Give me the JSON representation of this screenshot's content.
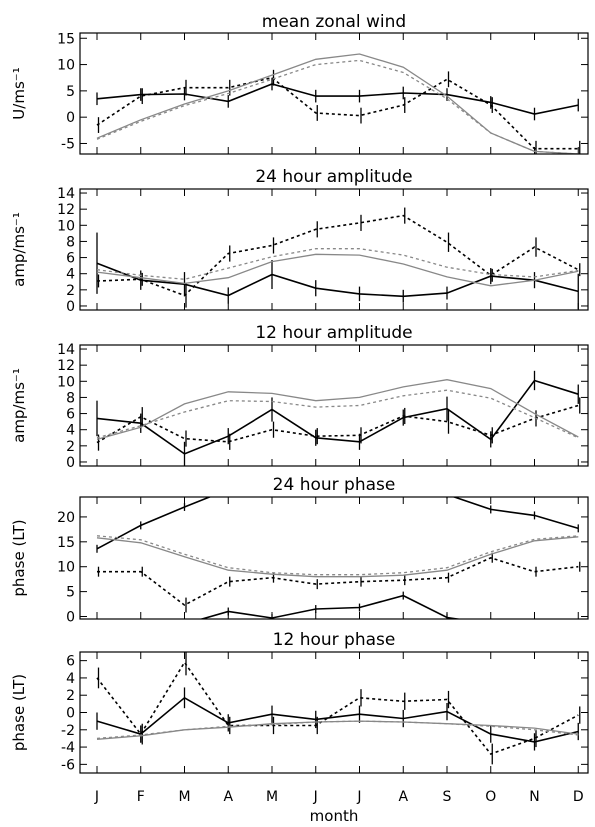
{
  "chart_data": {
    "type": "line",
    "months": [
      "J",
      "F",
      "M",
      "A",
      "M",
      "J",
      "J",
      "A",
      "S",
      "O",
      "N",
      "D"
    ],
    "xlabel": "month",
    "panels": [
      {
        "title": "mean zonal wind",
        "ylabel": "U/ms⁻¹",
        "ylim": [
          -7,
          16
        ],
        "yticks": [
          -5,
          0,
          5,
          10,
          15
        ],
        "series": [
          {
            "style": "solid-black",
            "values": [
              3.5,
              4.3,
              4.4,
              3.0,
              6.3,
              4.0,
              4.0,
              4.6,
              4.3,
              2.8,
              0.6,
              2.3
            ],
            "errors": [
              1.2,
              1.2,
              1.2,
              1.2,
              1.2,
              1.2,
              1.2,
              1.2,
              1.2,
              1.2,
              1.2,
              1.2
            ]
          },
          {
            "style": "dotted-black",
            "values": [
              -1.5,
              4.0,
              5.6,
              5.6,
              7.5,
              0.8,
              0.3,
              2.3,
              7.2,
              2.3,
              -6.0,
              -6.0
            ],
            "errors": [
              1.5,
              1.5,
              1.5,
              1.5,
              1.5,
              1.5,
              1.5,
              1.5,
              1.5,
              1.5,
              1.5,
              1.5
            ]
          },
          {
            "style": "solid-gray",
            "values": [
              -4.0,
              -0.5,
              2.5,
              5.0,
              8.0,
              11.0,
              12.0,
              9.5,
              4.0,
              -3.0,
              -6.5,
              -7.0
            ]
          },
          {
            "style": "dotted-gray",
            "values": [
              -4.2,
              -0.8,
              2.2,
              4.5,
              7.2,
              10.0,
              10.8,
              8.5,
              3.5,
              -3.0,
              -6.5,
              -7.0
            ]
          }
        ]
      },
      {
        "title": "24 hour amplitude",
        "ylabel": "amp/ms⁻¹",
        "ylim": [
          -0.5,
          14.5
        ],
        "yticks": [
          0,
          2,
          4,
          6,
          8,
          10,
          12,
          14
        ],
        "series": [
          {
            "style": "solid-black",
            "values": [
              5.3,
              3.2,
              2.7,
              1.3,
              3.9,
              2.2,
              1.5,
              1.2,
              1.6,
              3.7,
              3.2,
              1.8
            ],
            "errors": [
              3.8,
              1.2,
              1.5,
              1.0,
              1.8,
              1.0,
              0.9,
              0.8,
              0.8,
              1.0,
              1.0,
              2.2
            ]
          },
          {
            "style": "dotted-black",
            "values": [
              3.1,
              3.3,
              1.3,
              6.5,
              7.5,
              9.5,
              10.3,
              11.2,
              7.9,
              3.8,
              7.3,
              4.5
            ],
            "errors": [
              0.8,
              0.8,
              1.5,
              1.0,
              1.0,
              1.0,
              1.0,
              1.0,
              1.2,
              0.8,
              1.2,
              0.8
            ]
          },
          {
            "style": "solid-gray",
            "values": [
              4.2,
              3.5,
              2.8,
              3.5,
              5.5,
              6.4,
              6.3,
              5.2,
              3.6,
              2.5,
              3.2,
              4.3
            ]
          },
          {
            "style": "dotted-gray",
            "values": [
              4.5,
              3.8,
              3.3,
              4.7,
              6.1,
              7.1,
              7.1,
              6.3,
              4.8,
              3.9,
              3.6,
              4.4
            ]
          }
        ]
      },
      {
        "title": "12 hour amplitude",
        "ylabel": "amp/ms⁻¹",
        "ylim": [
          -0.5,
          14.5
        ],
        "yticks": [
          0,
          2,
          4,
          6,
          8,
          10,
          12,
          14
        ],
        "series": [
          {
            "style": "solid-black",
            "values": [
              5.4,
              4.8,
              1.0,
              3.2,
              6.5,
              3.0,
              2.5,
              5.5,
              6.6,
              2.8,
              10.1,
              8.4
            ],
            "errors": [
              2.2,
              1.2,
              1.5,
              1.0,
              1.5,
              1.0,
              1.0,
              1.0,
              1.5,
              1.0,
              1.2,
              1.2
            ]
          },
          {
            "style": "dotted-black",
            "values": [
              2.4,
              5.6,
              2.9,
              2.5,
              4.0,
              3.2,
              3.3,
              5.7,
              5.0,
              3.3,
              5.4,
              7.0
            ],
            "errors": [
              1.0,
              1.2,
              1.0,
              1.0,
              1.0,
              1.0,
              1.0,
              1.0,
              1.5,
              1.0,
              1.0,
              1.0
            ]
          },
          {
            "style": "solid-gray",
            "values": [
              2.8,
              4.3,
              7.2,
              8.7,
              8.5,
              7.6,
              8.0,
              9.3,
              10.2,
              9.1,
              6.0,
              3.1
            ]
          },
          {
            "style": "dotted-gray",
            "values": [
              3.0,
              4.5,
              6.2,
              7.6,
              7.5,
              6.8,
              7.0,
              8.2,
              8.9,
              7.9,
              5.5,
              3.0
            ]
          }
        ]
      },
      {
        "title": "24 hour phase",
        "ylabel": "phase (LT)",
        "ylim": [
          -0.5,
          24
        ],
        "yticks": [
          0,
          5,
          10,
          15,
          20
        ],
        "series": [
          {
            "style": "solid-black",
            "values": [
              13.6,
              18.3,
              22.0,
              25.5,
              null,
              null,
              null,
              null,
              24.5,
              21.5,
              20.3,
              17.7
            ],
            "errors": [
              0.8,
              0.8,
              0.8,
              0.8,
              0,
              0,
              0,
              0,
              0.8,
              0.8,
              0.8,
              0.8
            ]
          },
          {
            "style": "solid-black",
            "values": [
              null,
              null,
              -1.5,
              1.0,
              -0.3,
              1.5,
              1.8,
              4.2,
              -0.2,
              -1.5,
              null,
              null
            ],
            "errors": [
              0,
              0,
              0,
              0.8,
              0.8,
              0.8,
              0.8,
              0.8,
              0.8,
              0,
              0,
              0
            ]
          },
          {
            "style": "dotted-black",
            "values": [
              9.0,
              9.0,
              2.3,
              7.0,
              7.8,
              6.5,
              7.0,
              7.3,
              7.8,
              11.8,
              9.0,
              10.0
            ],
            "errors": [
              1.0,
              1.0,
              1.5,
              1.0,
              1.0,
              1.0,
              1.0,
              1.0,
              1.0,
              1.0,
              1.0,
              1.0
            ]
          },
          {
            "style": "solid-gray",
            "values": [
              15.8,
              14.8,
              12.0,
              9.3,
              8.5,
              8.0,
              8.0,
              8.3,
              9.3,
              12.5,
              15.2,
              16.0
            ]
          },
          {
            "style": "dotted-gray",
            "values": [
              16.2,
              15.4,
              12.5,
              9.8,
              8.8,
              8.4,
              8.4,
              8.8,
              9.8,
              13.0,
              15.5,
              16.2
            ]
          }
        ]
      },
      {
        "title": "12 hour phase",
        "ylabel": "phase (LT)",
        "ylim": [
          -7,
          7
        ],
        "yticks": [
          -6,
          -4,
          -2,
          0,
          2,
          4,
          6
        ],
        "series": [
          {
            "style": "solid-black",
            "values": [
              -1.0,
              -2.5,
              1.7,
              -1.2,
              -0.2,
              -0.8,
              -0.2,
              -0.7,
              0.1,
              -2.5,
              -3.4,
              -2.2
            ],
            "errors": [
              1.0,
              1.0,
              1.2,
              1.0,
              1.0,
              1.0,
              1.0,
              1.0,
              1.0,
              1.0,
              1.0,
              1.0
            ]
          },
          {
            "style": "dotted-black",
            "values": [
              4.0,
              -2.5,
              5.8,
              -1.5,
              -1.5,
              -1.5,
              1.7,
              1.3,
              1.5,
              -4.8,
              -3.0,
              -0.3
            ],
            "errors": [
              1.2,
              1.2,
              1.5,
              1.0,
              1.0,
              1.0,
              1.0,
              1.0,
              1.0,
              1.2,
              1.0,
              1.0
            ]
          },
          {
            "style": "solid-gray",
            "values": [
              -3.1,
              -2.7,
              -2.0,
              -1.7,
              -1.3,
              -1.1,
              -1.0,
              -1.1,
              -1.3,
              -1.5,
              -1.8,
              -2.5
            ]
          },
          {
            "style": "dotted-gray",
            "values": [
              -3.0,
              -2.6,
              -2.0,
              -1.6,
              -1.4,
              -1.1,
              -1.0,
              -1.1,
              -1.3,
              -1.6,
              -2.0,
              -2.6
            ]
          }
        ]
      }
    ]
  }
}
